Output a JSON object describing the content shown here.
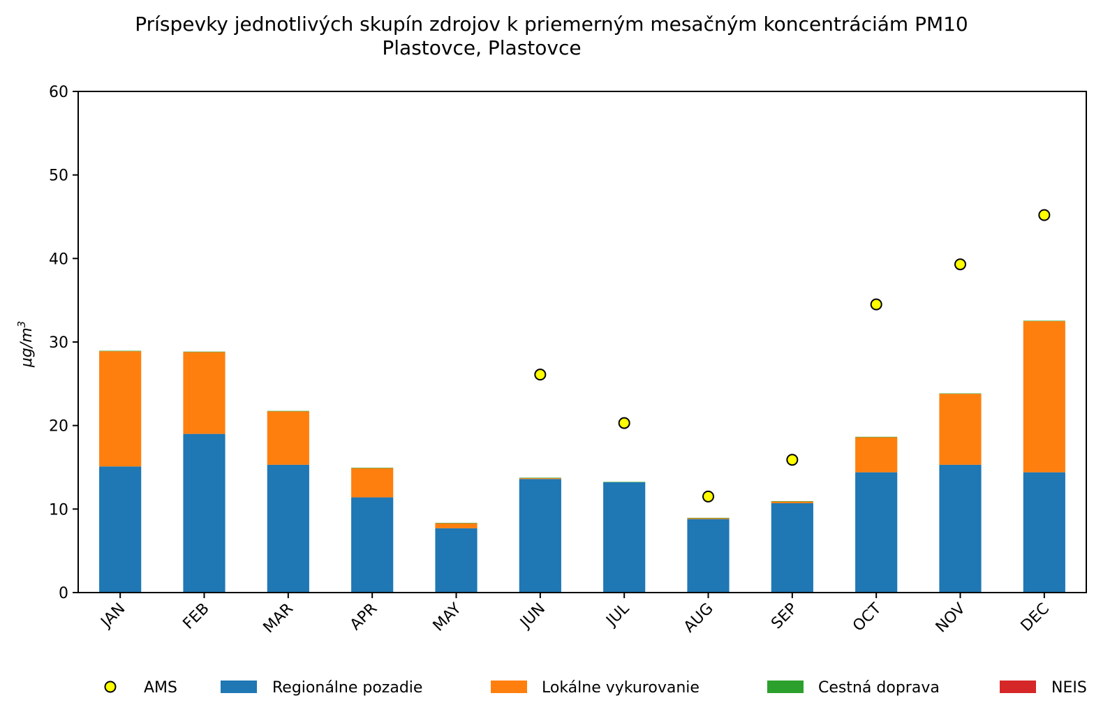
{
  "chart_data": {
    "type": "bar",
    "stacked": true,
    "title": "Príspevky jednotlivých skupín zdrojov k priemerným mesačným koncentráciám PM10",
    "subtitle": "Plastovce, Plastovce",
    "ylabel": "μg/m",
    "ylabel_sup": "3",
    "xlabel": "",
    "ylim": [
      0,
      60
    ],
    "yticks": [
      "0",
      "10",
      "20",
      "30",
      "40",
      "50",
      "60"
    ],
    "categories": [
      "JAN",
      "FEB",
      "MAR",
      "APR",
      "MAY",
      "JUN",
      "JUL",
      "AUG",
      "SEP",
      "OCT",
      "NOV",
      "DEC"
    ],
    "series": [
      {
        "name": "Regionálne pozadie",
        "color": "#1f77b4",
        "values": [
          15.1,
          19.0,
          15.3,
          11.4,
          7.7,
          13.6,
          13.2,
          8.8,
          10.7,
          14.4,
          15.3,
          14.4
        ]
      },
      {
        "name": "Lokálne vykurovanie",
        "color": "#ff7f0e",
        "values": [
          13.8,
          9.8,
          6.4,
          3.5,
          0.6,
          0.1,
          0.0,
          0.1,
          0.2,
          4.2,
          8.5,
          18.1
        ]
      },
      {
        "name": "Cestná doprava",
        "color": "#2ca02c",
        "values": [
          0.05,
          0.05,
          0.05,
          0.05,
          0.05,
          0.05,
          0.05,
          0.05,
          0.05,
          0.05,
          0.05,
          0.05
        ]
      },
      {
        "name": "NEIS",
        "color": "#d62728",
        "values": [
          0.0,
          0.0,
          0.0,
          0.0,
          0.0,
          0.0,
          0.0,
          0.0,
          0.0,
          0.0,
          0.0,
          0.0
        ]
      }
    ],
    "points": {
      "name": "AMS",
      "color": "#ffff00",
      "values": [
        null,
        null,
        null,
        null,
        null,
        26.1,
        20.3,
        11.5,
        15.9,
        34.5,
        39.3,
        45.2
      ]
    },
    "legend": [
      "AMS",
      "Regionálne pozadie",
      "Lokálne vykurovanie",
      "Cestná doprava",
      "NEIS"
    ],
    "legend_position": "bottom"
  }
}
